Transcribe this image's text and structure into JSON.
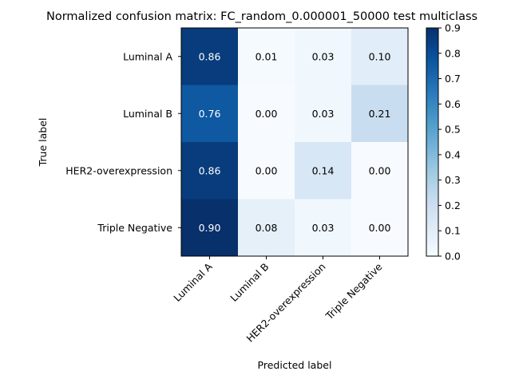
{
  "chart_data": {
    "type": "heatmap",
    "title": "Normalized confusion matrix: FC_random_0.000001_50000 test multiclass",
    "xlabel": "Predicted label",
    "ylabel": "True label",
    "x_categories": [
      "Luminal A",
      "Luminal B",
      "HER2-overexpression",
      "Triple Negative"
    ],
    "y_categories": [
      "Luminal A",
      "Luminal B",
      "HER2-overexpression",
      "Triple Negative"
    ],
    "values": [
      [
        0.86,
        0.01,
        0.03,
        0.1
      ],
      [
        0.76,
        0.0,
        0.03,
        0.21
      ],
      [
        0.86,
        0.0,
        0.14,
        0.0
      ],
      [
        0.9,
        0.08,
        0.03,
        0.0
      ]
    ],
    "colorbar": {
      "min": 0.0,
      "max": 0.9,
      "ticks": [
        "0.0",
        "0.1",
        "0.2",
        "0.3",
        "0.4",
        "0.5",
        "0.6",
        "0.7",
        "0.8",
        "0.9"
      ]
    },
    "colormap": "Blues"
  }
}
